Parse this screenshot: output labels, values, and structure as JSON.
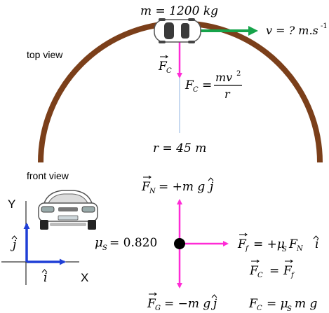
{
  "labels": {
    "mass": "m = 1200 kg",
    "velocity": "v = ? m.s",
    "velocity_exp": "-1",
    "top_view": "top view",
    "front_view": "front view",
    "radius": "r = 45 m",
    "mu_s": "= 0.820",
    "axis_y": "Y",
    "axis_x": "X",
    "fc_formula_lhs": "F",
    "fc_formula_eq": "=",
    "fc_formula_num": "mv",
    "fc_formula_den": "r",
    "fn_eq": "= +m g",
    "ff_eq": "= +μ",
    "ff_tail": "F",
    "fc_ff_eq": "=",
    "fg_eq": "= −m g",
    "fc_mu_eq": "= μ",
    "fc_mu_tail": "m g"
  },
  "colors": {
    "road": "#7b3f1a",
    "velocity_arrow": "#16a34a",
    "force_arrow": "#ff2bd6",
    "axis": "#1f3fd6",
    "radius_line": "#8fb3e0"
  },
  "icons": {
    "car_top": "car-top-view-icon",
    "car_front": "car-front-view-icon",
    "particle": "particle-dot-icon"
  }
}
